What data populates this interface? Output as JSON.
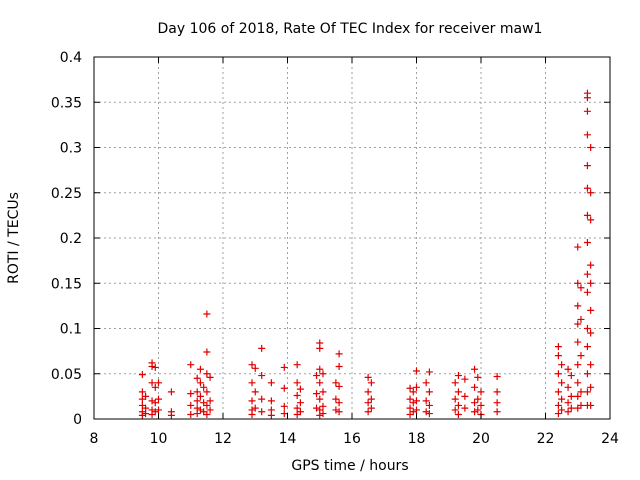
{
  "chart_data": {
    "type": "scatter",
    "title": "Day 106 of 2018, Rate Of TEC Index for receiver maw1",
    "xlabel": "GPS time / hours",
    "ylabel": "ROTI / TECUs",
    "xlim": [
      8,
      24
    ],
    "ylim": [
      0,
      0.4
    ],
    "xticks": [
      8,
      10,
      12,
      14,
      16,
      18,
      20,
      22,
      24
    ],
    "yticks": [
      0,
      0.05,
      0.1,
      0.15,
      0.2,
      0.25,
      0.3,
      0.35,
      0.4
    ],
    "xtick_labels": [
      "8",
      "10",
      "12",
      "14",
      "16",
      "18",
      "20",
      "22",
      "24"
    ],
    "ytick_labels": [
      "0",
      "0.05",
      "0.1",
      "0.15",
      "0.2",
      "0.25",
      "0.3",
      "0.35",
      "0.4"
    ],
    "grid": true,
    "marker": "+",
    "colors": {
      "marker": "#e00000",
      "grid": "#a0a0a0",
      "axis": "#000000"
    },
    "series": [
      {
        "name": "ROTI",
        "points": [
          [
            9.5,
            0.049
          ],
          [
            9.5,
            0.03
          ],
          [
            9.5,
            0.022
          ],
          [
            9.5,
            0.015
          ],
          [
            9.5,
            0.008
          ],
          [
            9.5,
            0.004
          ],
          [
            9.6,
            0.025
          ],
          [
            9.6,
            0.012
          ],
          [
            9.6,
            0.006
          ],
          [
            9.8,
            0.062
          ],
          [
            9.8,
            0.058
          ],
          [
            9.8,
            0.04
          ],
          [
            9.8,
            0.02
          ],
          [
            9.8,
            0.01
          ],
          [
            9.8,
            0.005
          ],
          [
            9.9,
            0.057
          ],
          [
            9.9,
            0.035
          ],
          [
            9.9,
            0.018
          ],
          [
            9.9,
            0.008
          ],
          [
            10.0,
            0.04
          ],
          [
            10.0,
            0.022
          ],
          [
            10.0,
            0.01
          ],
          [
            10.4,
            0.03
          ],
          [
            10.4,
            0.008
          ],
          [
            10.4,
            0.004
          ],
          [
            11.0,
            0.06
          ],
          [
            11.0,
            0.028
          ],
          [
            11.0,
            0.015
          ],
          [
            11.0,
            0.005
          ],
          [
            11.2,
            0.045
          ],
          [
            11.2,
            0.03
          ],
          [
            11.2,
            0.02
          ],
          [
            11.2,
            0.012
          ],
          [
            11.2,
            0.006
          ],
          [
            11.3,
            0.055
          ],
          [
            11.3,
            0.04
          ],
          [
            11.3,
            0.025
          ],
          [
            11.3,
            0.01
          ],
          [
            11.4,
            0.035
          ],
          [
            11.4,
            0.018
          ],
          [
            11.4,
            0.008
          ],
          [
            11.5,
            0.116
          ],
          [
            11.5,
            0.074
          ],
          [
            11.5,
            0.05
          ],
          [
            11.5,
            0.03
          ],
          [
            11.5,
            0.015
          ],
          [
            11.5,
            0.005
          ],
          [
            11.6,
            0.046
          ],
          [
            11.6,
            0.02
          ],
          [
            11.6,
            0.01
          ],
          [
            12.9,
            0.06
          ],
          [
            12.9,
            0.04
          ],
          [
            12.9,
            0.02
          ],
          [
            12.9,
            0.01
          ],
          [
            12.9,
            0.005
          ],
          [
            13.0,
            0.056
          ],
          [
            13.0,
            0.03
          ],
          [
            13.0,
            0.012
          ],
          [
            13.2,
            0.078
          ],
          [
            13.2,
            0.048
          ],
          [
            13.2,
            0.022
          ],
          [
            13.2,
            0.008
          ],
          [
            13.5,
            0.04
          ],
          [
            13.5,
            0.02
          ],
          [
            13.5,
            0.01
          ],
          [
            13.5,
            0.004
          ],
          [
            13.9,
            0.057
          ],
          [
            13.9,
            0.034
          ],
          [
            13.9,
            0.014
          ],
          [
            13.9,
            0.006
          ],
          [
            14.3,
            0.06
          ],
          [
            14.3,
            0.04
          ],
          [
            14.3,
            0.026
          ],
          [
            14.3,
            0.012
          ],
          [
            14.3,
            0.005
          ],
          [
            14.4,
            0.033
          ],
          [
            14.4,
            0.018
          ],
          [
            14.4,
            0.008
          ],
          [
            14.9,
            0.048
          ],
          [
            14.9,
            0.028
          ],
          [
            14.9,
            0.012
          ],
          [
            15.0,
            0.084
          ],
          [
            15.0,
            0.078
          ],
          [
            15.0,
            0.055
          ],
          [
            15.0,
            0.04
          ],
          [
            15.0,
            0.022
          ],
          [
            15.0,
            0.01
          ],
          [
            15.0,
            0.004
          ],
          [
            15.1,
            0.05
          ],
          [
            15.1,
            0.03
          ],
          [
            15.1,
            0.014
          ],
          [
            15.1,
            0.006
          ],
          [
            15.5,
            0.04
          ],
          [
            15.5,
            0.022
          ],
          [
            15.5,
            0.01
          ],
          [
            15.6,
            0.072
          ],
          [
            15.6,
            0.058
          ],
          [
            15.6,
            0.036
          ],
          [
            15.6,
            0.018
          ],
          [
            15.6,
            0.008
          ],
          [
            16.5,
            0.046
          ],
          [
            16.5,
            0.03
          ],
          [
            16.5,
            0.018
          ],
          [
            16.5,
            0.008
          ],
          [
            16.6,
            0.04
          ],
          [
            16.6,
            0.022
          ],
          [
            16.6,
            0.012
          ],
          [
            17.8,
            0.034
          ],
          [
            17.8,
            0.022
          ],
          [
            17.8,
            0.012
          ],
          [
            17.8,
            0.005
          ],
          [
            17.9,
            0.03
          ],
          [
            17.9,
            0.018
          ],
          [
            17.9,
            0.008
          ],
          [
            18.0,
            0.053
          ],
          [
            18.0,
            0.035
          ],
          [
            18.0,
            0.02
          ],
          [
            18.0,
            0.01
          ],
          [
            18.3,
            0.04
          ],
          [
            18.3,
            0.02
          ],
          [
            18.3,
            0.008
          ],
          [
            18.4,
            0.052
          ],
          [
            18.4,
            0.03
          ],
          [
            18.4,
            0.015
          ],
          [
            18.4,
            0.006
          ],
          [
            19.2,
            0.04
          ],
          [
            19.2,
            0.022
          ],
          [
            19.2,
            0.01
          ],
          [
            19.3,
            0.048
          ],
          [
            19.3,
            0.03
          ],
          [
            19.3,
            0.015
          ],
          [
            19.3,
            0.005
          ],
          [
            19.5,
            0.044
          ],
          [
            19.5,
            0.025
          ],
          [
            19.5,
            0.012
          ],
          [
            19.8,
            0.055
          ],
          [
            19.8,
            0.035
          ],
          [
            19.8,
            0.018
          ],
          [
            19.8,
            0.008
          ],
          [
            19.9,
            0.046
          ],
          [
            19.9,
            0.022
          ],
          [
            19.9,
            0.01
          ],
          [
            20.0,
            0.03
          ],
          [
            20.0,
            0.015
          ],
          [
            20.0,
            0.005
          ],
          [
            20.5,
            0.047
          ],
          [
            20.5,
            0.03
          ],
          [
            20.5,
            0.018
          ],
          [
            20.5,
            0.008
          ],
          [
            22.4,
            0.08
          ],
          [
            22.4,
            0.07
          ],
          [
            22.4,
            0.05
          ],
          [
            22.4,
            0.03
          ],
          [
            22.4,
            0.015
          ],
          [
            22.4,
            0.006
          ],
          [
            22.5,
            0.06
          ],
          [
            22.5,
            0.04
          ],
          [
            22.5,
            0.022
          ],
          [
            22.5,
            0.01
          ],
          [
            22.7,
            0.055
          ],
          [
            22.7,
            0.035
          ],
          [
            22.7,
            0.018
          ],
          [
            22.7,
            0.008
          ],
          [
            22.8,
            0.048
          ],
          [
            22.8,
            0.025
          ],
          [
            22.8,
            0.012
          ],
          [
            23.0,
            0.19
          ],
          [
            23.0,
            0.15
          ],
          [
            23.0,
            0.125
          ],
          [
            23.0,
            0.105
          ],
          [
            23.0,
            0.085
          ],
          [
            23.0,
            0.06
          ],
          [
            23.0,
            0.04
          ],
          [
            23.0,
            0.025
          ],
          [
            23.0,
            0.012
          ],
          [
            23.1,
            0.145
          ],
          [
            23.1,
            0.11
          ],
          [
            23.1,
            0.07
          ],
          [
            23.1,
            0.03
          ],
          [
            23.1,
            0.015
          ],
          [
            23.3,
            0.36
          ],
          [
            23.3,
            0.355
          ],
          [
            23.3,
            0.34
          ],
          [
            23.3,
            0.314
          ],
          [
            23.3,
            0.28
          ],
          [
            23.3,
            0.255
          ],
          [
            23.3,
            0.225
          ],
          [
            23.3,
            0.195
          ],
          [
            23.3,
            0.16
          ],
          [
            23.3,
            0.14
          ],
          [
            23.3,
            0.1
          ],
          [
            23.3,
            0.08
          ],
          [
            23.3,
            0.05
          ],
          [
            23.3,
            0.03
          ],
          [
            23.3,
            0.015
          ],
          [
            23.4,
            0.3
          ],
          [
            23.4,
            0.25
          ],
          [
            23.4,
            0.22
          ],
          [
            23.4,
            0.17
          ],
          [
            23.4,
            0.15
          ],
          [
            23.4,
            0.12
          ],
          [
            23.4,
            0.095
          ],
          [
            23.4,
            0.06
          ],
          [
            23.4,
            0.035
          ],
          [
            23.4,
            0.015
          ]
        ]
      }
    ]
  }
}
